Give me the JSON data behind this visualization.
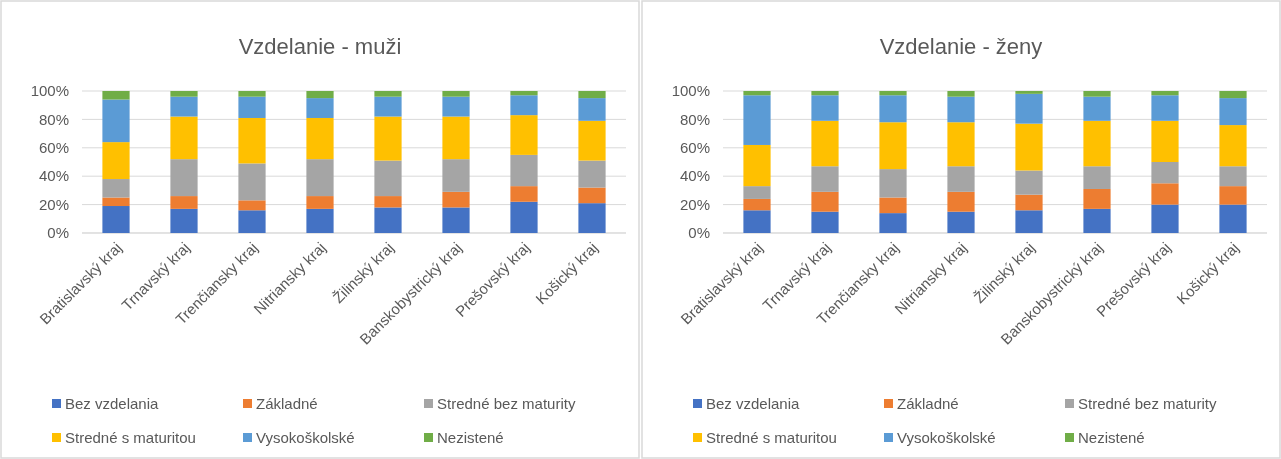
{
  "chart_data": [
    {
      "type": "bar",
      "stacked": true,
      "title": "Vzdelanie - muži",
      "categories": [
        "Bratislavský kraj",
        "Trnavský kraj",
        "Trenčiansky kraj",
        "Nitriansky kraj",
        "Žilinský kraj",
        "Banskobystrický kraj",
        "Prešovský kraj",
        "Košický kraj"
      ],
      "series": [
        {
          "name": "Bez vzdelania",
          "color": "#4472c4",
          "values": [
            19,
            17,
            16,
            17,
            18,
            18,
            22,
            21
          ]
        },
        {
          "name": "Základné",
          "color": "#ed7d31",
          "values": [
            6,
            9,
            7,
            9,
            8,
            11,
            11,
            11
          ]
        },
        {
          "name": "Stredné bez maturity",
          "color": "#a5a5a5",
          "values": [
            13,
            26,
            26,
            26,
            25,
            23,
            22,
            19
          ]
        },
        {
          "name": "Stredné s maturitou",
          "color": "#ffc000",
          "values": [
            26,
            30,
            32,
            29,
            31,
            30,
            28,
            28
          ]
        },
        {
          "name": "Vysokoškolské",
          "color": "#5b9bd5",
          "values": [
            30,
            14,
            15,
            14,
            14,
            14,
            14,
            16
          ]
        },
        {
          "name": "Nezistené",
          "color": "#70ad47",
          "values": [
            6,
            4,
            4,
            5,
            4,
            4,
            3,
            5
          ]
        }
      ],
      "ylim": [
        0,
        100
      ],
      "yticks": [
        {
          "value": 0,
          "label": "0%"
        },
        {
          "value": 20,
          "label": "20%"
        },
        {
          "value": 40,
          "label": "40%"
        },
        {
          "value": 60,
          "label": "60%"
        },
        {
          "value": 80,
          "label": "80%"
        },
        {
          "value": 100,
          "label": "100%"
        }
      ],
      "grid": "y",
      "legend": "bottom"
    },
    {
      "type": "bar",
      "stacked": true,
      "title": "Vzdelanie - ženy",
      "categories": [
        "Bratislavský kraj",
        "Trnavský kraj",
        "Trenčiansky kraj",
        "Nitriansky kraj",
        "Žilinský kraj",
        "Banskobystrický kraj",
        "Prešovský kraj",
        "Košický kraj"
      ],
      "series": [
        {
          "name": "Bez vzdelania",
          "color": "#4472c4",
          "values": [
            16,
            15,
            14,
            15,
            16,
            17,
            20,
            20
          ]
        },
        {
          "name": "Základné",
          "color": "#ed7d31",
          "values": [
            8,
            14,
            11,
            14,
            11,
            14,
            15,
            13
          ]
        },
        {
          "name": "Stredné bez maturity",
          "color": "#a5a5a5",
          "values": [
            9,
            18,
            20,
            18,
            17,
            16,
            15,
            14
          ]
        },
        {
          "name": "Stredné s maturitou",
          "color": "#ffc000",
          "values": [
            29,
            32,
            33,
            31,
            33,
            32,
            29,
            29
          ]
        },
        {
          "name": "Vysokoškolské",
          "color": "#5b9bd5",
          "values": [
            35,
            18,
            19,
            18,
            21,
            17,
            18,
            19
          ]
        },
        {
          "name": "Nezistené",
          "color": "#70ad47",
          "values": [
            3,
            3,
            3,
            4,
            2,
            4,
            3,
            5
          ]
        }
      ],
      "ylim": [
        0,
        100
      ],
      "yticks": [
        {
          "value": 0,
          "label": "0%"
        },
        {
          "value": 20,
          "label": "20%"
        },
        {
          "value": 40,
          "label": "40%"
        },
        {
          "value": 60,
          "label": "60%"
        },
        {
          "value": 80,
          "label": "80%"
        },
        {
          "value": 100,
          "label": "100%"
        }
      ],
      "grid": "y",
      "legend": "bottom"
    }
  ]
}
